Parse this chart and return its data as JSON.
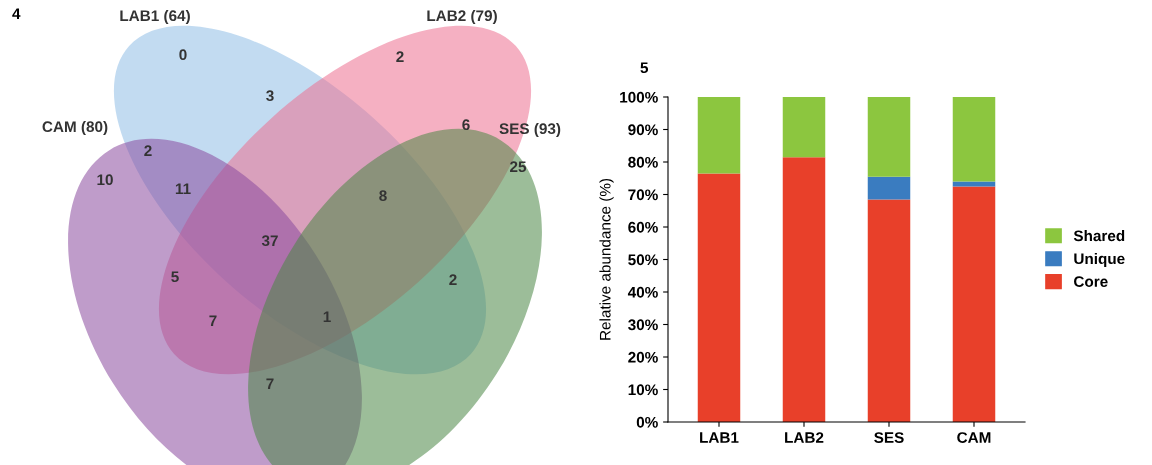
{
  "chart_data": [
    {
      "type": "other",
      "title": "4",
      "colors": [
        "#8fbde6",
        "#ec6f8f",
        "#8a4a9e",
        "#4a8646"
      ],
      "annotations": [
        "LAB1 (64)",
        "LAB2 (79)",
        "CAM (80)",
        "SES (93)",
        "0",
        "2",
        "3",
        "6",
        "2",
        "10",
        "11",
        "8",
        "25",
        "37",
        "5",
        "2",
        "7",
        "1",
        "7"
      ]
    },
    {
      "type": "bar",
      "title": "5",
      "stacked": true,
      "categories": [
        "LAB1",
        "LAB2",
        "SES",
        "CAM"
      ],
      "series": [
        {
          "name": "Core",
          "color": "#e8402a",
          "values": [
            76.5,
            81.5,
            68.5,
            72.5
          ]
        },
        {
          "name": "Unique",
          "color": "#3a7cc0",
          "values": [
            0,
            0,
            7,
            1.5
          ]
        },
        {
          "name": "Shared",
          "color": "#8cc63f",
          "values": [
            23.5,
            18.5,
            24.5,
            26
          ]
        }
      ],
      "ylabel": "Relative abundance (%)",
      "ylim": [
        0,
        100
      ],
      "yticks": [
        {
          "value": 0,
          "label": "0%"
        },
        {
          "value": 10,
          "label": "10%"
        },
        {
          "value": 20,
          "label": "20%"
        },
        {
          "value": 30,
          "label": "30%"
        },
        {
          "value": 40,
          "label": "40%"
        },
        {
          "value": 50,
          "label": "50%"
        },
        {
          "value": 60,
          "label": "60%"
        },
        {
          "value": 70,
          "label": "70%"
        },
        {
          "value": 80,
          "label": "80%"
        },
        {
          "value": 90,
          "label": "90%"
        },
        {
          "value": 100,
          "label": "100%"
        }
      ],
      "legend": "right",
      "grid": false
    }
  ]
}
